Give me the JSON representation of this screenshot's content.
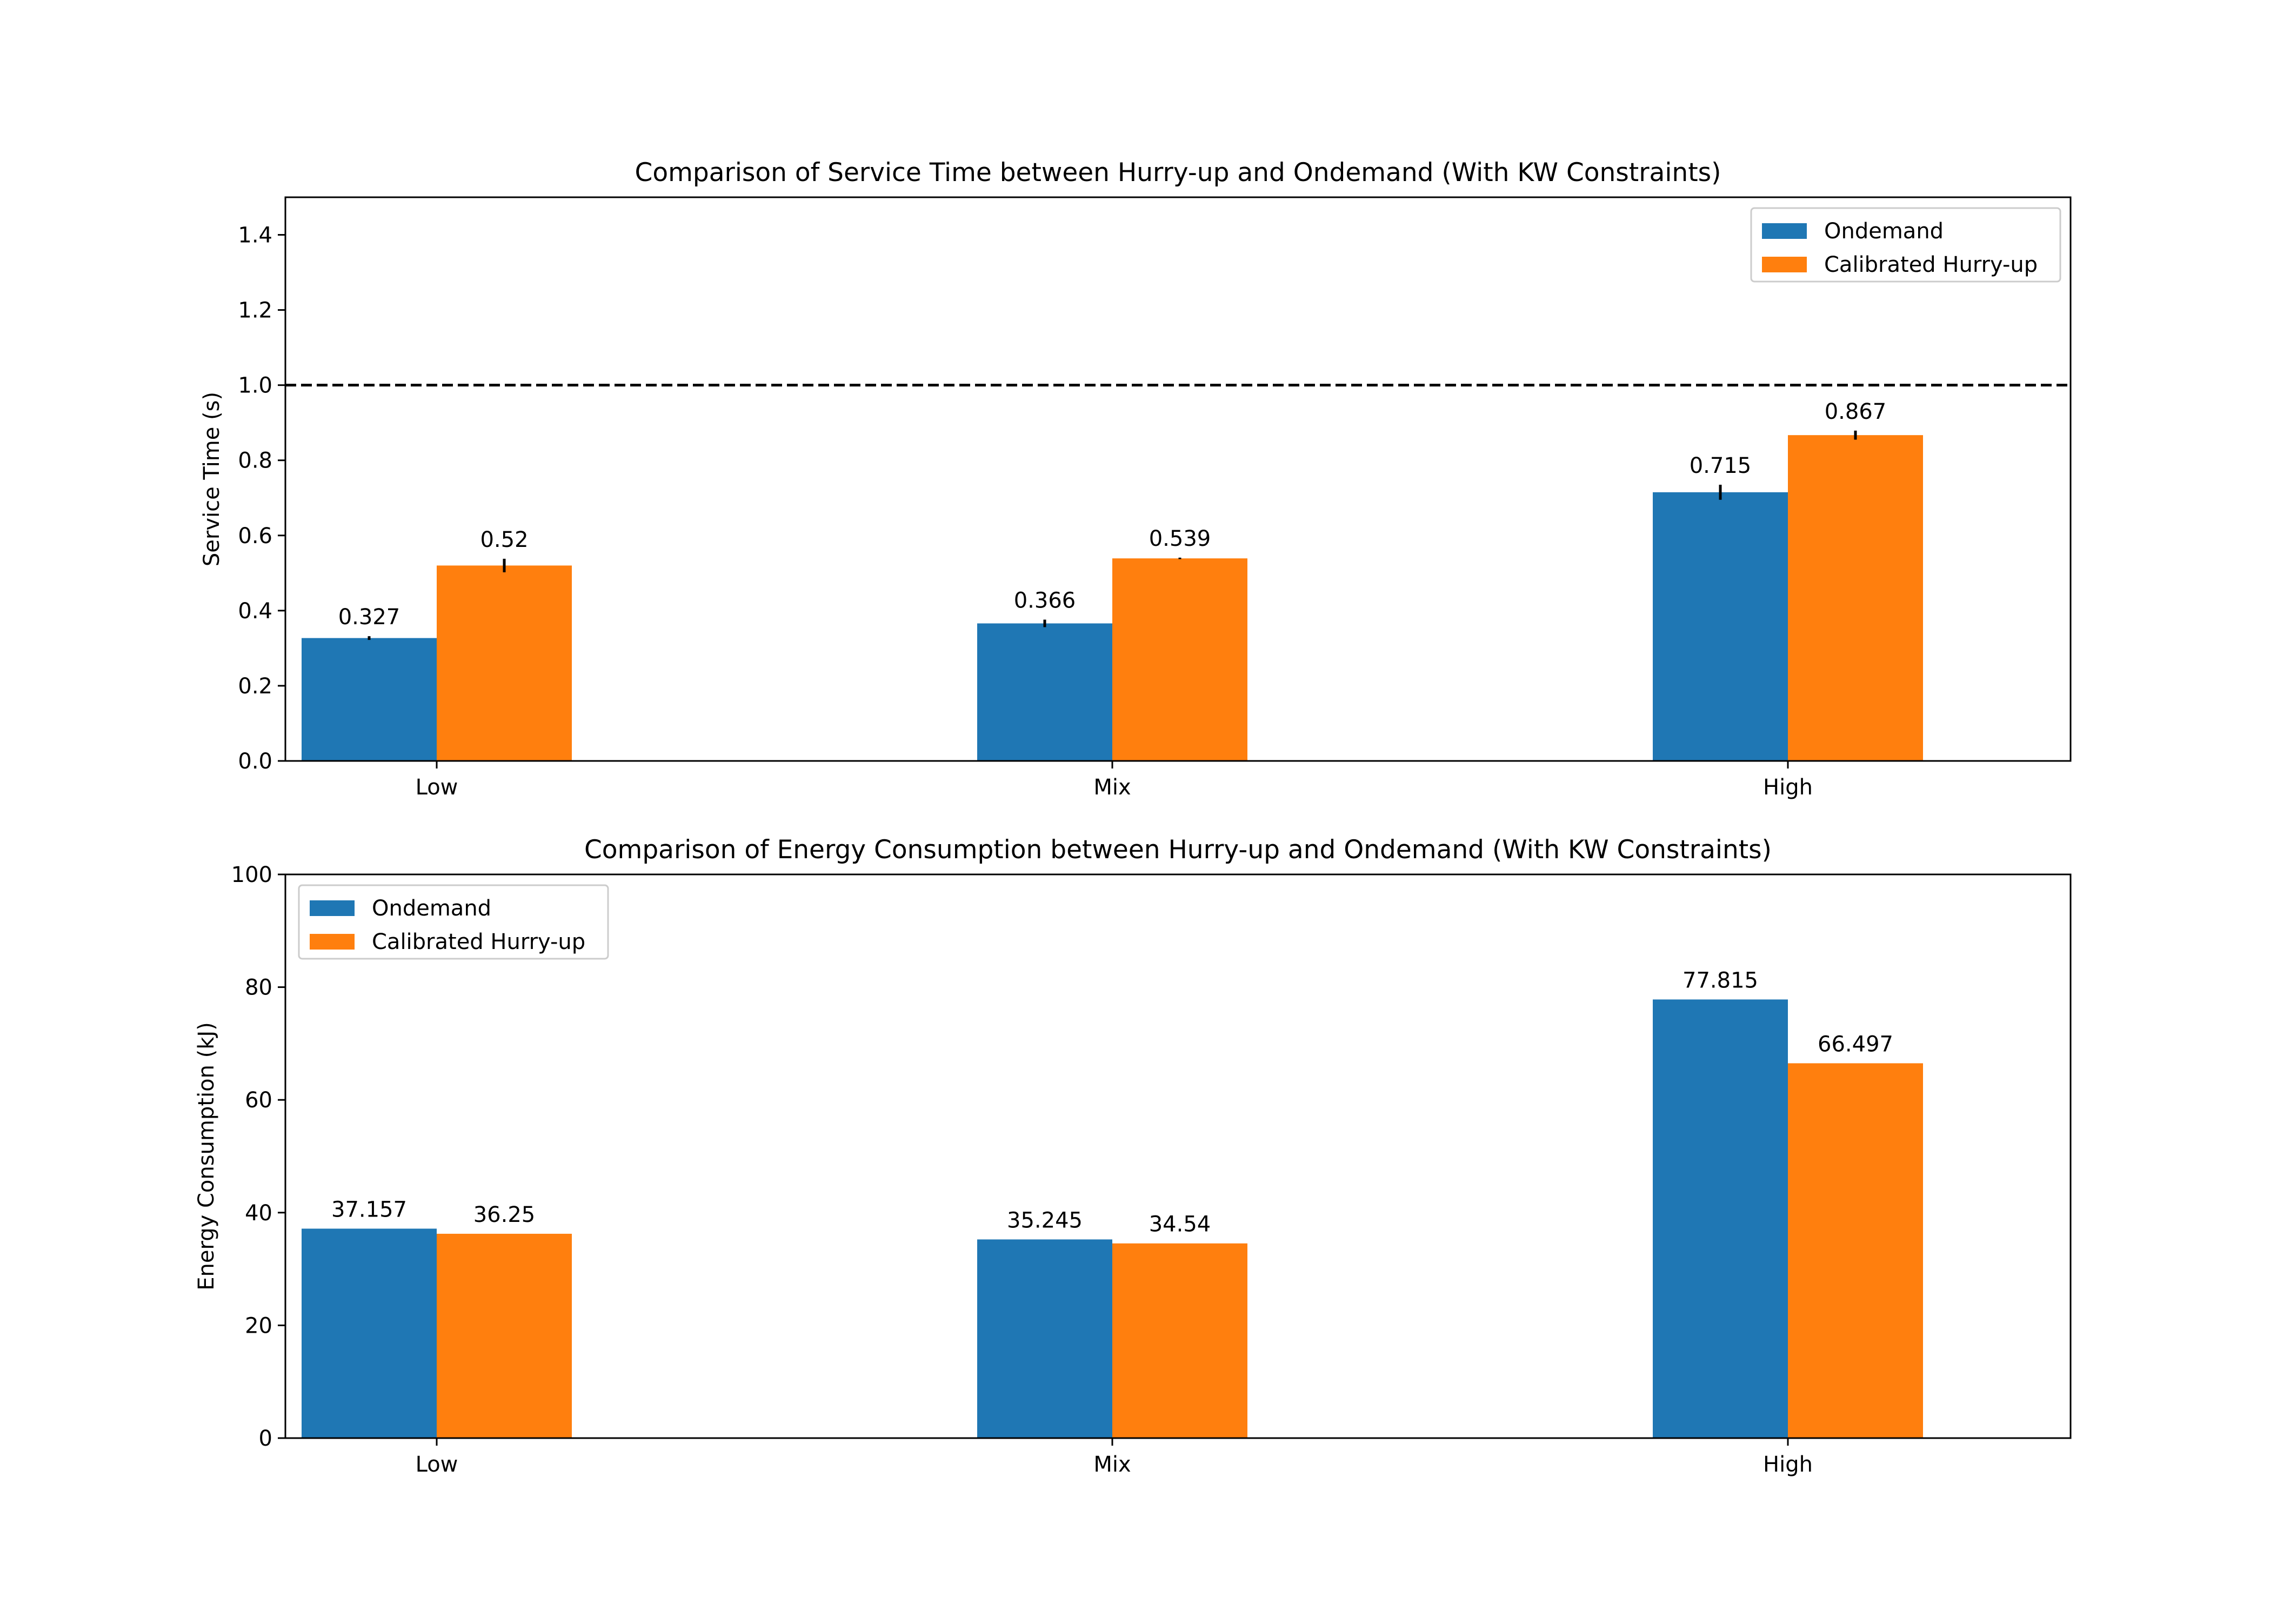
{
  "chart_data": [
    {
      "type": "bar",
      "title": "Comparison of Service Time between Hurry-up and Ondemand (With KW Constraints)",
      "xlabel": "",
      "ylabel": "Service Time (s)",
      "categories": [
        "Low",
        "Mix",
        "High"
      ],
      "ylim": [
        0,
        1.5
      ],
      "yticks": [
        "0.0",
        "0.2",
        "0.4",
        "0.6",
        "0.8",
        "1.0",
        "1.2",
        "1.4"
      ],
      "reference_line": {
        "y": 1.0,
        "style": "dashed",
        "color": "#000000"
      },
      "legend_position": "upper right",
      "series": [
        {
          "name": "Ondemand",
          "color": "#1f77b4",
          "values": [
            0.327,
            0.366,
            0.715
          ],
          "errors": [
            0.005,
            0.01,
            0.02
          ],
          "labels": [
            "0.327",
            "0.366",
            "0.715"
          ]
        },
        {
          "name": "Calibrated Hurry-up",
          "color": "#ff7f0e",
          "values": [
            0.52,
            0.539,
            0.867
          ],
          "errors": [
            0.018,
            0.002,
            0.012
          ],
          "labels": [
            "0.52",
            "0.539",
            "0.867"
          ]
        }
      ]
    },
    {
      "type": "bar",
      "title": "Comparison of Energy Consumption between Hurry-up and Ondemand (With KW Constraints)",
      "xlabel": "",
      "ylabel": "Energy Consumption (kJ)",
      "categories": [
        "Low",
        "Mix",
        "High"
      ],
      "ylim": [
        0,
        100
      ],
      "yticks": [
        "0",
        "20",
        "40",
        "60",
        "80",
        "100"
      ],
      "legend_position": "upper left",
      "series": [
        {
          "name": "Ondemand",
          "color": "#1f77b4",
          "values": [
            37.157,
            35.245,
            77.815
          ],
          "labels": [
            "37.157",
            "35.245",
            "77.815"
          ]
        },
        {
          "name": "Calibrated Hurry-up",
          "color": "#ff7f0e",
          "values": [
            36.25,
            34.54,
            66.497
          ],
          "labels": [
            "36.25",
            "34.54",
            "66.497"
          ]
        }
      ]
    }
  ]
}
